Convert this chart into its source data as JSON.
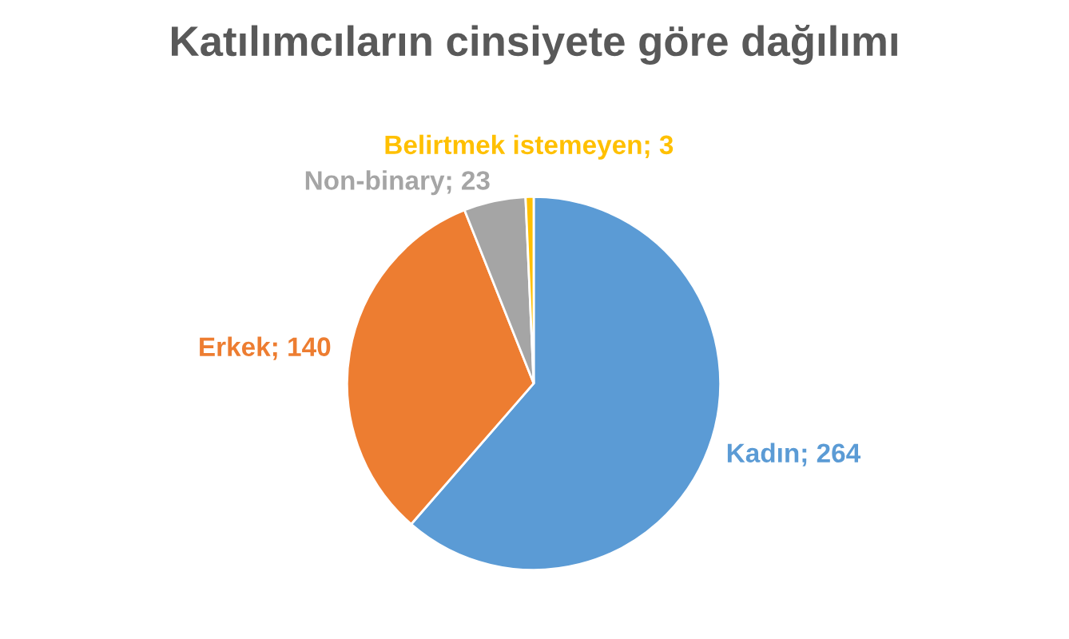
{
  "chart_data": {
    "type": "pie",
    "title": "Katılımcıların cinsiyete göre dağılımı",
    "categories": [
      "Kadın",
      "Erkek",
      "Non-binary",
      "Belirtmek istemeyen"
    ],
    "values": [
      264,
      140,
      23,
      3
    ],
    "colors": [
      "#5b9bd5",
      "#ed7d31",
      "#a5a5a5",
      "#ffc000"
    ],
    "value_labels": [
      "; 264",
      "; 140",
      "; 23",
      "; 3"
    ],
    "legend": false
  }
}
